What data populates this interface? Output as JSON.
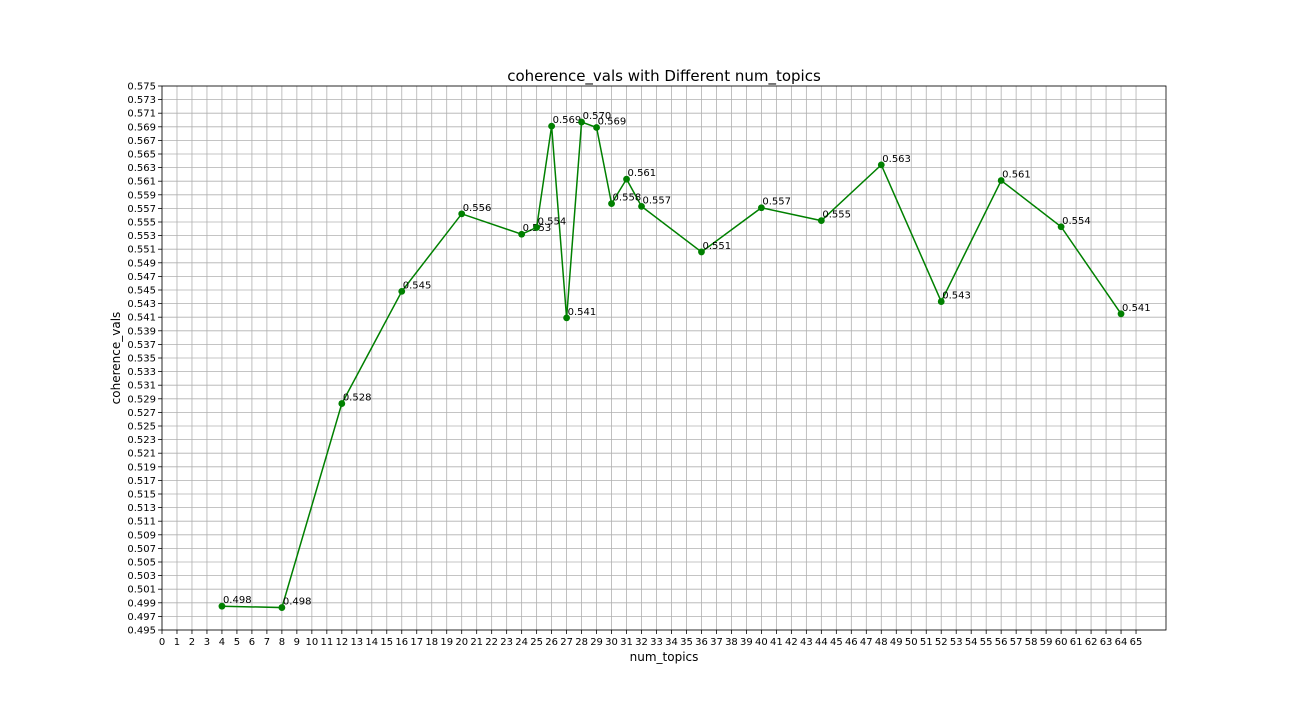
{
  "chart_data": {
    "type": "line",
    "title": "coherence_vals with Different num_topics",
    "xlabel": "num_topics",
    "ylabel": "coherence_vals",
    "xlim": [
      0,
      67
    ],
    "ylim": [
      0.495,
      0.575
    ],
    "x_ticks": [
      0,
      1,
      2,
      3,
      4,
      5,
      6,
      7,
      8,
      9,
      10,
      11,
      12,
      13,
      14,
      15,
      16,
      17,
      18,
      19,
      20,
      21,
      22,
      23,
      24,
      25,
      26,
      27,
      28,
      29,
      30,
      31,
      32,
      33,
      34,
      35,
      36,
      37,
      38,
      39,
      40,
      41,
      42,
      43,
      44,
      45,
      46,
      47,
      48,
      49,
      50,
      51,
      52,
      53,
      54,
      55,
      56,
      57,
      58,
      59,
      60,
      61,
      62,
      63,
      64,
      65
    ],
    "y_ticks": [
      "0.495",
      "0.497",
      "0.499",
      "0.501",
      "0.503",
      "0.505",
      "0.507",
      "0.509",
      "0.511",
      "0.513",
      "0.515",
      "0.517",
      "0.519",
      "0.521",
      "0.523",
      "0.525",
      "0.527",
      "0.529",
      "0.531",
      "0.533",
      "0.535",
      "0.537",
      "0.539",
      "0.541",
      "0.543",
      "0.545",
      "0.547",
      "0.549",
      "0.551",
      "0.553",
      "0.555",
      "0.557",
      "0.559",
      "0.561",
      "0.563",
      "0.565",
      "0.567",
      "0.569",
      "0.571",
      "0.573",
      "0.575"
    ],
    "grid": true,
    "legend": "none",
    "series": [
      {
        "color": "#008000",
        "marker": "circle",
        "x": [
          4,
          8,
          12,
          16,
          20,
          24,
          25,
          26,
          27,
          28,
          29,
          30,
          31,
          32,
          36,
          40,
          44,
          48,
          52,
          56,
          60,
          64
        ],
        "y": [
          0.4985,
          0.4983,
          0.5283,
          0.5448,
          0.5562,
          0.5532,
          0.5542,
          0.5691,
          0.5409,
          0.5697,
          0.5689,
          0.5577,
          0.5613,
          0.5573,
          0.5506,
          0.5571,
          0.5552,
          0.5634,
          0.5433,
          0.5611,
          0.5543,
          0.5415
        ],
        "labels": [
          "0.498",
          "0.498",
          "0.528",
          "0.545",
          "0.556",
          "0.553",
          "0.554",
          "0.569",
          "0.541",
          "0.570",
          "0.569",
          "0.558",
          "0.561",
          "0.557",
          "0.551",
          "0.557",
          "0.555",
          "0.563",
          "0.543",
          "0.561",
          "0.554",
          "0.541"
        ]
      }
    ]
  }
}
